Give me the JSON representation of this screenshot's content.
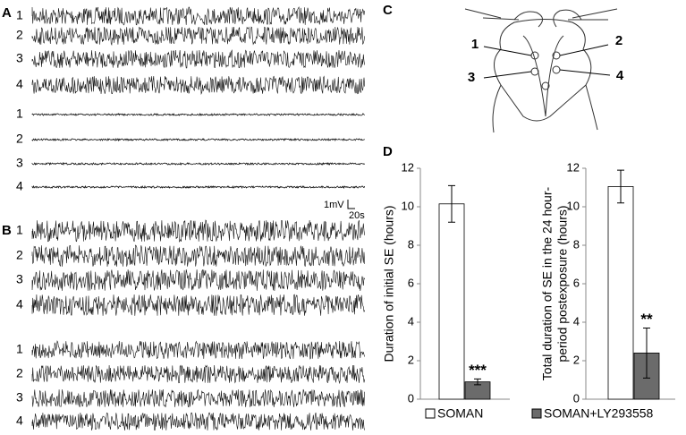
{
  "panel_labels": [
    "A",
    "B",
    "C",
    "D"
  ],
  "trace_groups": [
    {
      "channels": [
        "1",
        "2",
        "3",
        "4"
      ]
    },
    {
      "channels": [
        "1",
        "2",
        "3",
        "4"
      ]
    },
    {
      "channels": [
        "1",
        "2",
        "3",
        "4"
      ]
    },
    {
      "channels": [
        "1",
        "2",
        "3",
        "4"
      ]
    }
  ],
  "scale_bar": {
    "voltage": "1mV",
    "time": "20s"
  },
  "diagram": {
    "electrodes": [
      "1",
      "2",
      "3",
      "4"
    ]
  },
  "legend": [
    {
      "name": "SOMAN",
      "color": "#ffffff"
    },
    {
      "name": "SOMAN+LY293558",
      "color": "#6b6b6b"
    }
  ],
  "chart_data": [
    {
      "type": "bar",
      "ylabel": [
        "Duration of initial SE (hours)"
      ],
      "values": [
        10.15,
        0.9
      ],
      "errors": [
        0.95,
        0.15
      ],
      "annotation": "***",
      "ylim": [
        0,
        12
      ],
      "yticks": [
        0,
        2,
        4,
        6,
        8,
        10,
        12
      ]
    },
    {
      "type": "bar",
      "ylabel": [
        "Total duration of SE in the 24 hour-",
        "period postexposure  (hours)"
      ],
      "values": [
        11.05,
        2.4
      ],
      "errors": [
        0.85,
        1.3
      ],
      "annotation": "**",
      "ylim": [
        0,
        12
      ],
      "yticks": [
        0,
        2,
        4,
        6,
        8,
        10,
        12
      ]
    }
  ]
}
